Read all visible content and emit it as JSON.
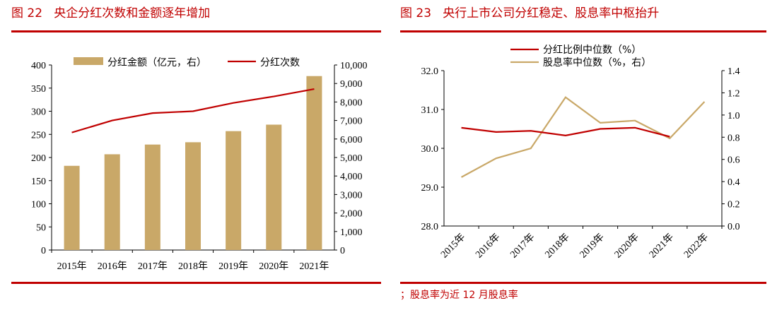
{
  "figures": {
    "left_title": "图 22   央企分红次数和金额逐年增加",
    "right_title": "图 23   央行上市公司分红稳定、股息率中枢抬升",
    "right_note": "；股息率为近 12 月股息率"
  },
  "chart_data": [
    {
      "type": "bar+line",
      "categories": [
        "2015年",
        "2016年",
        "2017年",
        "2018年",
        "2019年",
        "2020年",
        "2021年"
      ],
      "series": [
        {
          "name": "分红金额（亿元，右）",
          "type": "bar",
          "axis": "left",
          "color": "#c9a868",
          "values": [
            182,
            207,
            228,
            233,
            257,
            271,
            376
          ]
        },
        {
          "name": "分红次数",
          "type": "line",
          "axis": "right",
          "color": "#c00000",
          "values": [
            6350,
            7000,
            7400,
            7500,
            7950,
            8300,
            8700
          ]
        }
      ],
      "y_left": {
        "ylim": [
          0,
          400
        ],
        "ticks": [
          "0",
          "50",
          "100",
          "150",
          "200",
          "250",
          "300",
          "350",
          "400"
        ]
      },
      "y_right": {
        "ylim": [
          0,
          10000
        ],
        "ticks": [
          "0",
          "1,000",
          "2,000",
          "3,000",
          "4,000",
          "5,000",
          "6,000",
          "7,000",
          "8,000",
          "9,000",
          "10,000"
        ]
      },
      "legend_position": "top",
      "grid": false
    },
    {
      "type": "line",
      "categories": [
        "2015年",
        "2016年",
        "2017年",
        "2018年",
        "2019年",
        "2020年",
        "2021年",
        "2022年"
      ],
      "series": [
        {
          "name": "分红比例中位数（%）",
          "axis": "left",
          "color": "#c00000",
          "values": [
            30.53,
            30.42,
            30.45,
            30.33,
            30.5,
            30.53,
            30.3,
            null
          ]
        },
        {
          "name": "股息率中位数（%，右）",
          "axis": "right",
          "color": "#c9a868",
          "values": [
            0.44,
            0.61,
            0.7,
            1.16,
            0.93,
            0.95,
            0.79,
            1.12
          ]
        }
      ],
      "y_left": {
        "ylim": [
          28.0,
          32.0
        ],
        "ticks": [
          "28.0",
          "29.0",
          "30.0",
          "31.0",
          "32.0"
        ]
      },
      "y_right": {
        "ylim": [
          0.0,
          1.4
        ],
        "ticks": [
          "0.0",
          "0.2",
          "0.4",
          "0.6",
          "0.8",
          "1.0",
          "1.2",
          "1.4"
        ]
      },
      "legend_position": "top",
      "grid": false
    }
  ]
}
